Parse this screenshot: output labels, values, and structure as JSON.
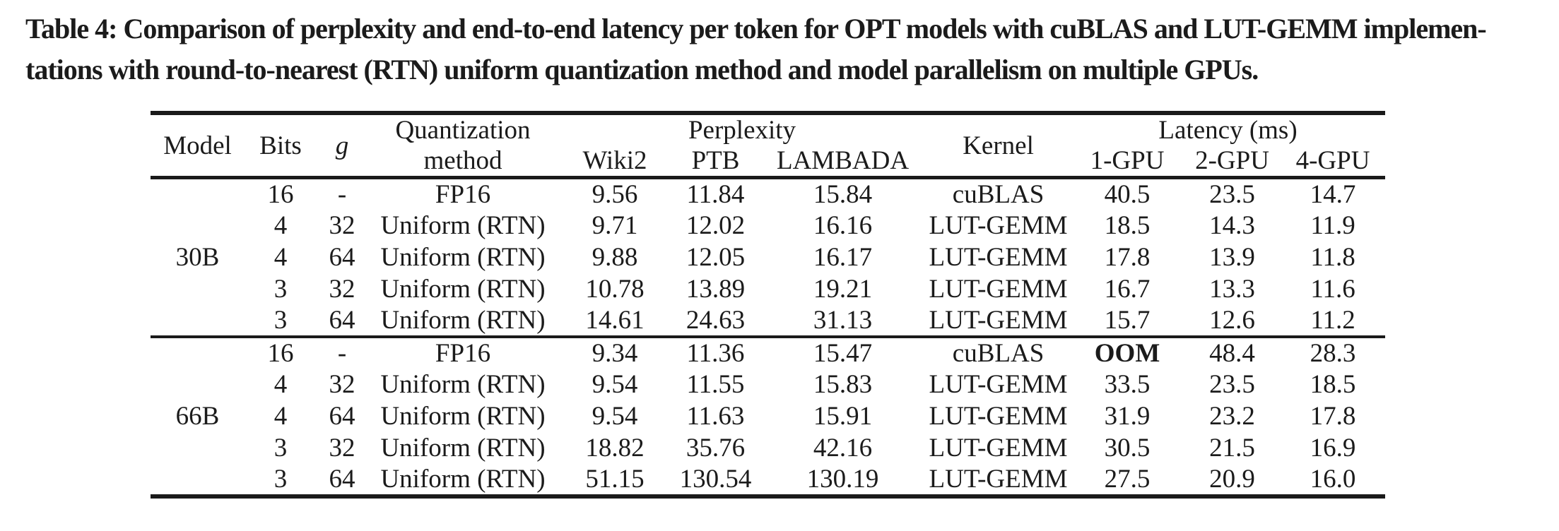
{
  "caption": {
    "line1": "Table 4: Comparison of perplexity and end-to-end latency per token for OPT models with cuBLAS and LUT-GEMM implemen-",
    "line2": "tations with round-to-nearest (RTN) uniform quantization method and model parallelism on multiple GPUs."
  },
  "colors": {
    "text": "#1b1b1b",
    "rule": "#1a1a1a",
    "background": "#ffffff"
  },
  "table": {
    "headers": {
      "model": "Model",
      "bits": "Bits",
      "g": "g",
      "quant_line1": "Quantization",
      "quant_line2": "method",
      "perplexity": "Perplexity",
      "wiki2": "Wiki2",
      "ptb": "PTB",
      "lambada": "LAMBADA",
      "kernel": "Kernel",
      "latency": "Latency (ms)",
      "gpu1": "1-GPU",
      "gpu2": "2-GPU",
      "gpu4": "4-GPU"
    },
    "groups": [
      {
        "model": "30B",
        "rows": [
          {
            "bits": "16",
            "g": "-",
            "method": "FP16",
            "wiki2": "9.56",
            "ptb": "11.84",
            "lambada": "15.84",
            "kernel": "cuBLAS",
            "gpu1": "40.5",
            "gpu2": "23.5",
            "gpu4": "14.7",
            "bold": ""
          },
          {
            "bits": "4",
            "g": "32",
            "method": "Uniform (RTN)",
            "wiki2": "9.71",
            "ptb": "12.02",
            "lambada": "16.16",
            "kernel": "LUT-GEMM",
            "gpu1": "18.5",
            "gpu2": "14.3",
            "gpu4": "11.9",
            "bold": ""
          },
          {
            "bits": "4",
            "g": "64",
            "method": "Uniform (RTN)",
            "wiki2": "9.88",
            "ptb": "12.05",
            "lambada": "16.17",
            "kernel": "LUT-GEMM",
            "gpu1": "17.8",
            "gpu2": "13.9",
            "gpu4": "11.8",
            "bold": ""
          },
          {
            "bits": "3",
            "g": "32",
            "method": "Uniform (RTN)",
            "wiki2": "10.78",
            "ptb": "13.89",
            "lambada": "19.21",
            "kernel": "LUT-GEMM",
            "gpu1": "16.7",
            "gpu2": "13.3",
            "gpu4": "11.6",
            "bold": ""
          },
          {
            "bits": "3",
            "g": "64",
            "method": "Uniform (RTN)",
            "wiki2": "14.61",
            "ptb": "24.63",
            "lambada": "31.13",
            "kernel": "LUT-GEMM",
            "gpu1": "15.7",
            "gpu2": "12.6",
            "gpu4": "11.2",
            "bold": ""
          }
        ]
      },
      {
        "model": "66B",
        "rows": [
          {
            "bits": "16",
            "g": "-",
            "method": "FP16",
            "wiki2": "9.34",
            "ptb": "11.36",
            "lambada": "15.47",
            "kernel": "cuBLAS",
            "gpu1": "OOM",
            "gpu2": "48.4",
            "gpu4": "28.3",
            "bold": "gpu1"
          },
          {
            "bits": "4",
            "g": "32",
            "method": "Uniform (RTN)",
            "wiki2": "9.54",
            "ptb": "11.55",
            "lambada": "15.83",
            "kernel": "LUT-GEMM",
            "gpu1": "33.5",
            "gpu2": "23.5",
            "gpu4": "18.5",
            "bold": ""
          },
          {
            "bits": "4",
            "g": "64",
            "method": "Uniform (RTN)",
            "wiki2": "9.54",
            "ptb": "11.63",
            "lambada": "15.91",
            "kernel": "LUT-GEMM",
            "gpu1": "31.9",
            "gpu2": "23.2",
            "gpu4": "17.8",
            "bold": ""
          },
          {
            "bits": "3",
            "g": "32",
            "method": "Uniform (RTN)",
            "wiki2": "18.82",
            "ptb": "35.76",
            "lambada": "42.16",
            "kernel": "LUT-GEMM",
            "gpu1": "30.5",
            "gpu2": "21.5",
            "gpu4": "16.9",
            "bold": ""
          },
          {
            "bits": "3",
            "g": "64",
            "method": "Uniform (RTN)",
            "wiki2": "51.15",
            "ptb": "130.54",
            "lambada": "130.19",
            "kernel": "LUT-GEMM",
            "gpu1": "27.5",
            "gpu2": "20.9",
            "gpu4": "16.0",
            "bold": ""
          }
        ]
      }
    ]
  }
}
